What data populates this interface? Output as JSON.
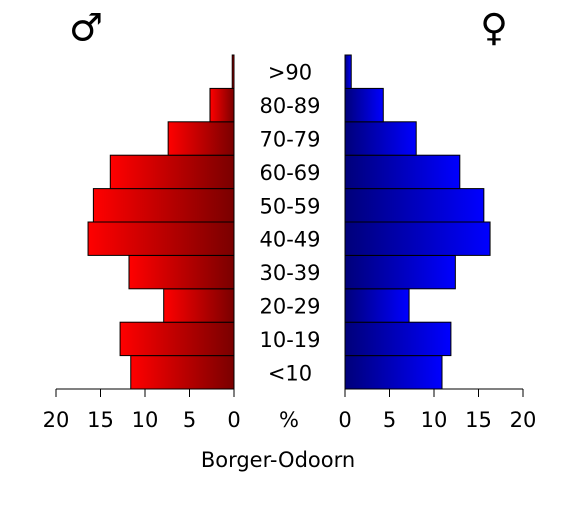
{
  "chart_data": {
    "type": "pyramid",
    "title": "Borger-Odoorn",
    "xlabel": "%",
    "categories": [
      "<10",
      "10-19",
      "20-29",
      "30-39",
      "40-49",
      "50-59",
      "60-69",
      "70-79",
      "80-89",
      ">90"
    ],
    "series": [
      {
        "name": "♂",
        "color": "#ff0000",
        "values": [
          11.6,
          12.8,
          7.9,
          11.8,
          16.4,
          15.8,
          13.9,
          7.4,
          2.7,
          0.2
        ]
      },
      {
        "name": "♀",
        "color": "#0000ff",
        "values": [
          10.9,
          11.9,
          7.2,
          12.4,
          16.3,
          15.6,
          12.9,
          8.0,
          4.3,
          0.7
        ]
      }
    ],
    "xlim": [
      0,
      20
    ],
    "xticks": [
      0,
      5,
      10,
      15,
      20
    ]
  }
}
